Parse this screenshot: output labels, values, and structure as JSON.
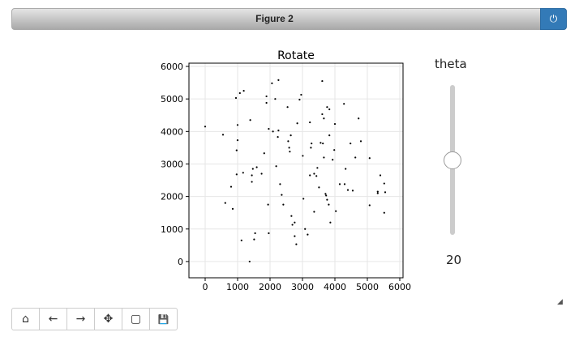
{
  "window": {
    "title": "Figure 2",
    "close_icon": "power-icon"
  },
  "slider": {
    "label": "theta",
    "value": "20",
    "min": 0,
    "max": 40,
    "position_fraction": 0.5
  },
  "toolbar": {
    "buttons": [
      {
        "name": "home",
        "icon": "home-icon",
        "glyph": "⌂"
      },
      {
        "name": "back",
        "icon": "arrow-left-icon",
        "glyph": "←"
      },
      {
        "name": "forward",
        "icon": "arrow-right-icon",
        "glyph": "→"
      },
      {
        "name": "pan",
        "icon": "move-icon",
        "glyph": "✥"
      },
      {
        "name": "zoom",
        "icon": "square-icon",
        "glyph": "▢"
      },
      {
        "name": "save",
        "icon": "save-icon",
        "glyph": "💾"
      }
    ]
  },
  "chart_data": {
    "type": "scatter",
    "title": "Rotate",
    "xlabel": "",
    "ylabel": "",
    "xlim": [
      -500,
      6100
    ],
    "ylim": [
      -500,
      6100
    ],
    "xticks": [
      0,
      1000,
      2000,
      3000,
      4000,
      5000,
      6000
    ],
    "yticks": [
      0,
      1000,
      2000,
      3000,
      4000,
      5000,
      6000
    ],
    "grid": true,
    "marker_color": "#000000",
    "points": [
      [
        0,
        4150
      ],
      [
        550,
        3900
      ],
      [
        620,
        1800
      ],
      [
        850,
        1620
      ],
      [
        800,
        2300
      ],
      [
        950,
        5030
      ],
      [
        1070,
        5180
      ],
      [
        1190,
        5250
      ],
      [
        970,
        3420
      ],
      [
        1000,
        3730
      ],
      [
        1000,
        4200
      ],
      [
        970,
        2680
      ],
      [
        1170,
        2730
      ],
      [
        1120,
        650
      ],
      [
        1390,
        4350
      ],
      [
        1370,
        0
      ],
      [
        1440,
        2650
      ],
      [
        1470,
        2850
      ],
      [
        1440,
        2450
      ],
      [
        1540,
        870
      ],
      [
        1510,
        680
      ],
      [
        1590,
        2900
      ],
      [
        1740,
        2700
      ],
      [
        1820,
        3330
      ],
      [
        1890,
        5080
      ],
      [
        1890,
        4880
      ],
      [
        1940,
        1750
      ],
      [
        1960,
        4080
      ],
      [
        1960,
        870
      ],
      [
        2060,
        5480
      ],
      [
        2090,
        4000
      ],
      [
        2160,
        5000
      ],
      [
        2190,
        2930
      ],
      [
        2260,
        5580
      ],
      [
        2260,
        4030
      ],
      [
        2240,
        3830
      ],
      [
        2310,
        2380
      ],
      [
        2360,
        2050
      ],
      [
        2410,
        1750
      ],
      [
        2540,
        4750
      ],
      [
        2560,
        3700
      ],
      [
        2590,
        3500
      ],
      [
        2610,
        3380
      ],
      [
        2640,
        3880
      ],
      [
        2660,
        1400
      ],
      [
        2690,
        1130
      ],
      [
        2760,
        780
      ],
      [
        2810,
        530
      ],
      [
        2760,
        1200
      ],
      [
        2840,
        4250
      ],
      [
        2910,
        4980
      ],
      [
        2960,
        5130
      ],
      [
        3010,
        3250
      ],
      [
        3030,
        1930
      ],
      [
        3080,
        1000
      ],
      [
        3160,
        830
      ],
      [
        3230,
        4280
      ],
      [
        3230,
        2650
      ],
      [
        3260,
        3500
      ],
      [
        3280,
        3630
      ],
      [
        3360,
        2700
      ],
      [
        3360,
        1530
      ],
      [
        3430,
        2630
      ],
      [
        3460,
        2880
      ],
      [
        3510,
        2280
      ],
      [
        3560,
        3650
      ],
      [
        3610,
        5550
      ],
      [
        3610,
        4530
      ],
      [
        3630,
        3630
      ],
      [
        3660,
        4400
      ],
      [
        3660,
        3200
      ],
      [
        3710,
        2080
      ],
      [
        3730,
        2030
      ],
      [
        3760,
        1900
      ],
      [
        3760,
        4750
      ],
      [
        3810,
        1750
      ],
      [
        3830,
        3880
      ],
      [
        3830,
        4680
      ],
      [
        3860,
        1200
      ],
      [
        3930,
        3130
      ],
      [
        3980,
        3430
      ],
      [
        4000,
        4230
      ],
      [
        4030,
        1550
      ],
      [
        4150,
        2380
      ],
      [
        4280,
        4850
      ],
      [
        4300,
        2380
      ],
      [
        4330,
        2850
      ],
      [
        4400,
        2200
      ],
      [
        4480,
        3630
      ],
      [
        4550,
        2180
      ],
      [
        4630,
        3200
      ],
      [
        4730,
        4400
      ],
      [
        4800,
        3700
      ],
      [
        5070,
        3180
      ],
      [
        5070,
        1730
      ],
      [
        5320,
        2150
      ],
      [
        5320,
        2100
      ],
      [
        5400,
        2650
      ],
      [
        5520,
        2400
      ],
      [
        5550,
        2130
      ],
      [
        5520,
        1500
      ]
    ]
  }
}
